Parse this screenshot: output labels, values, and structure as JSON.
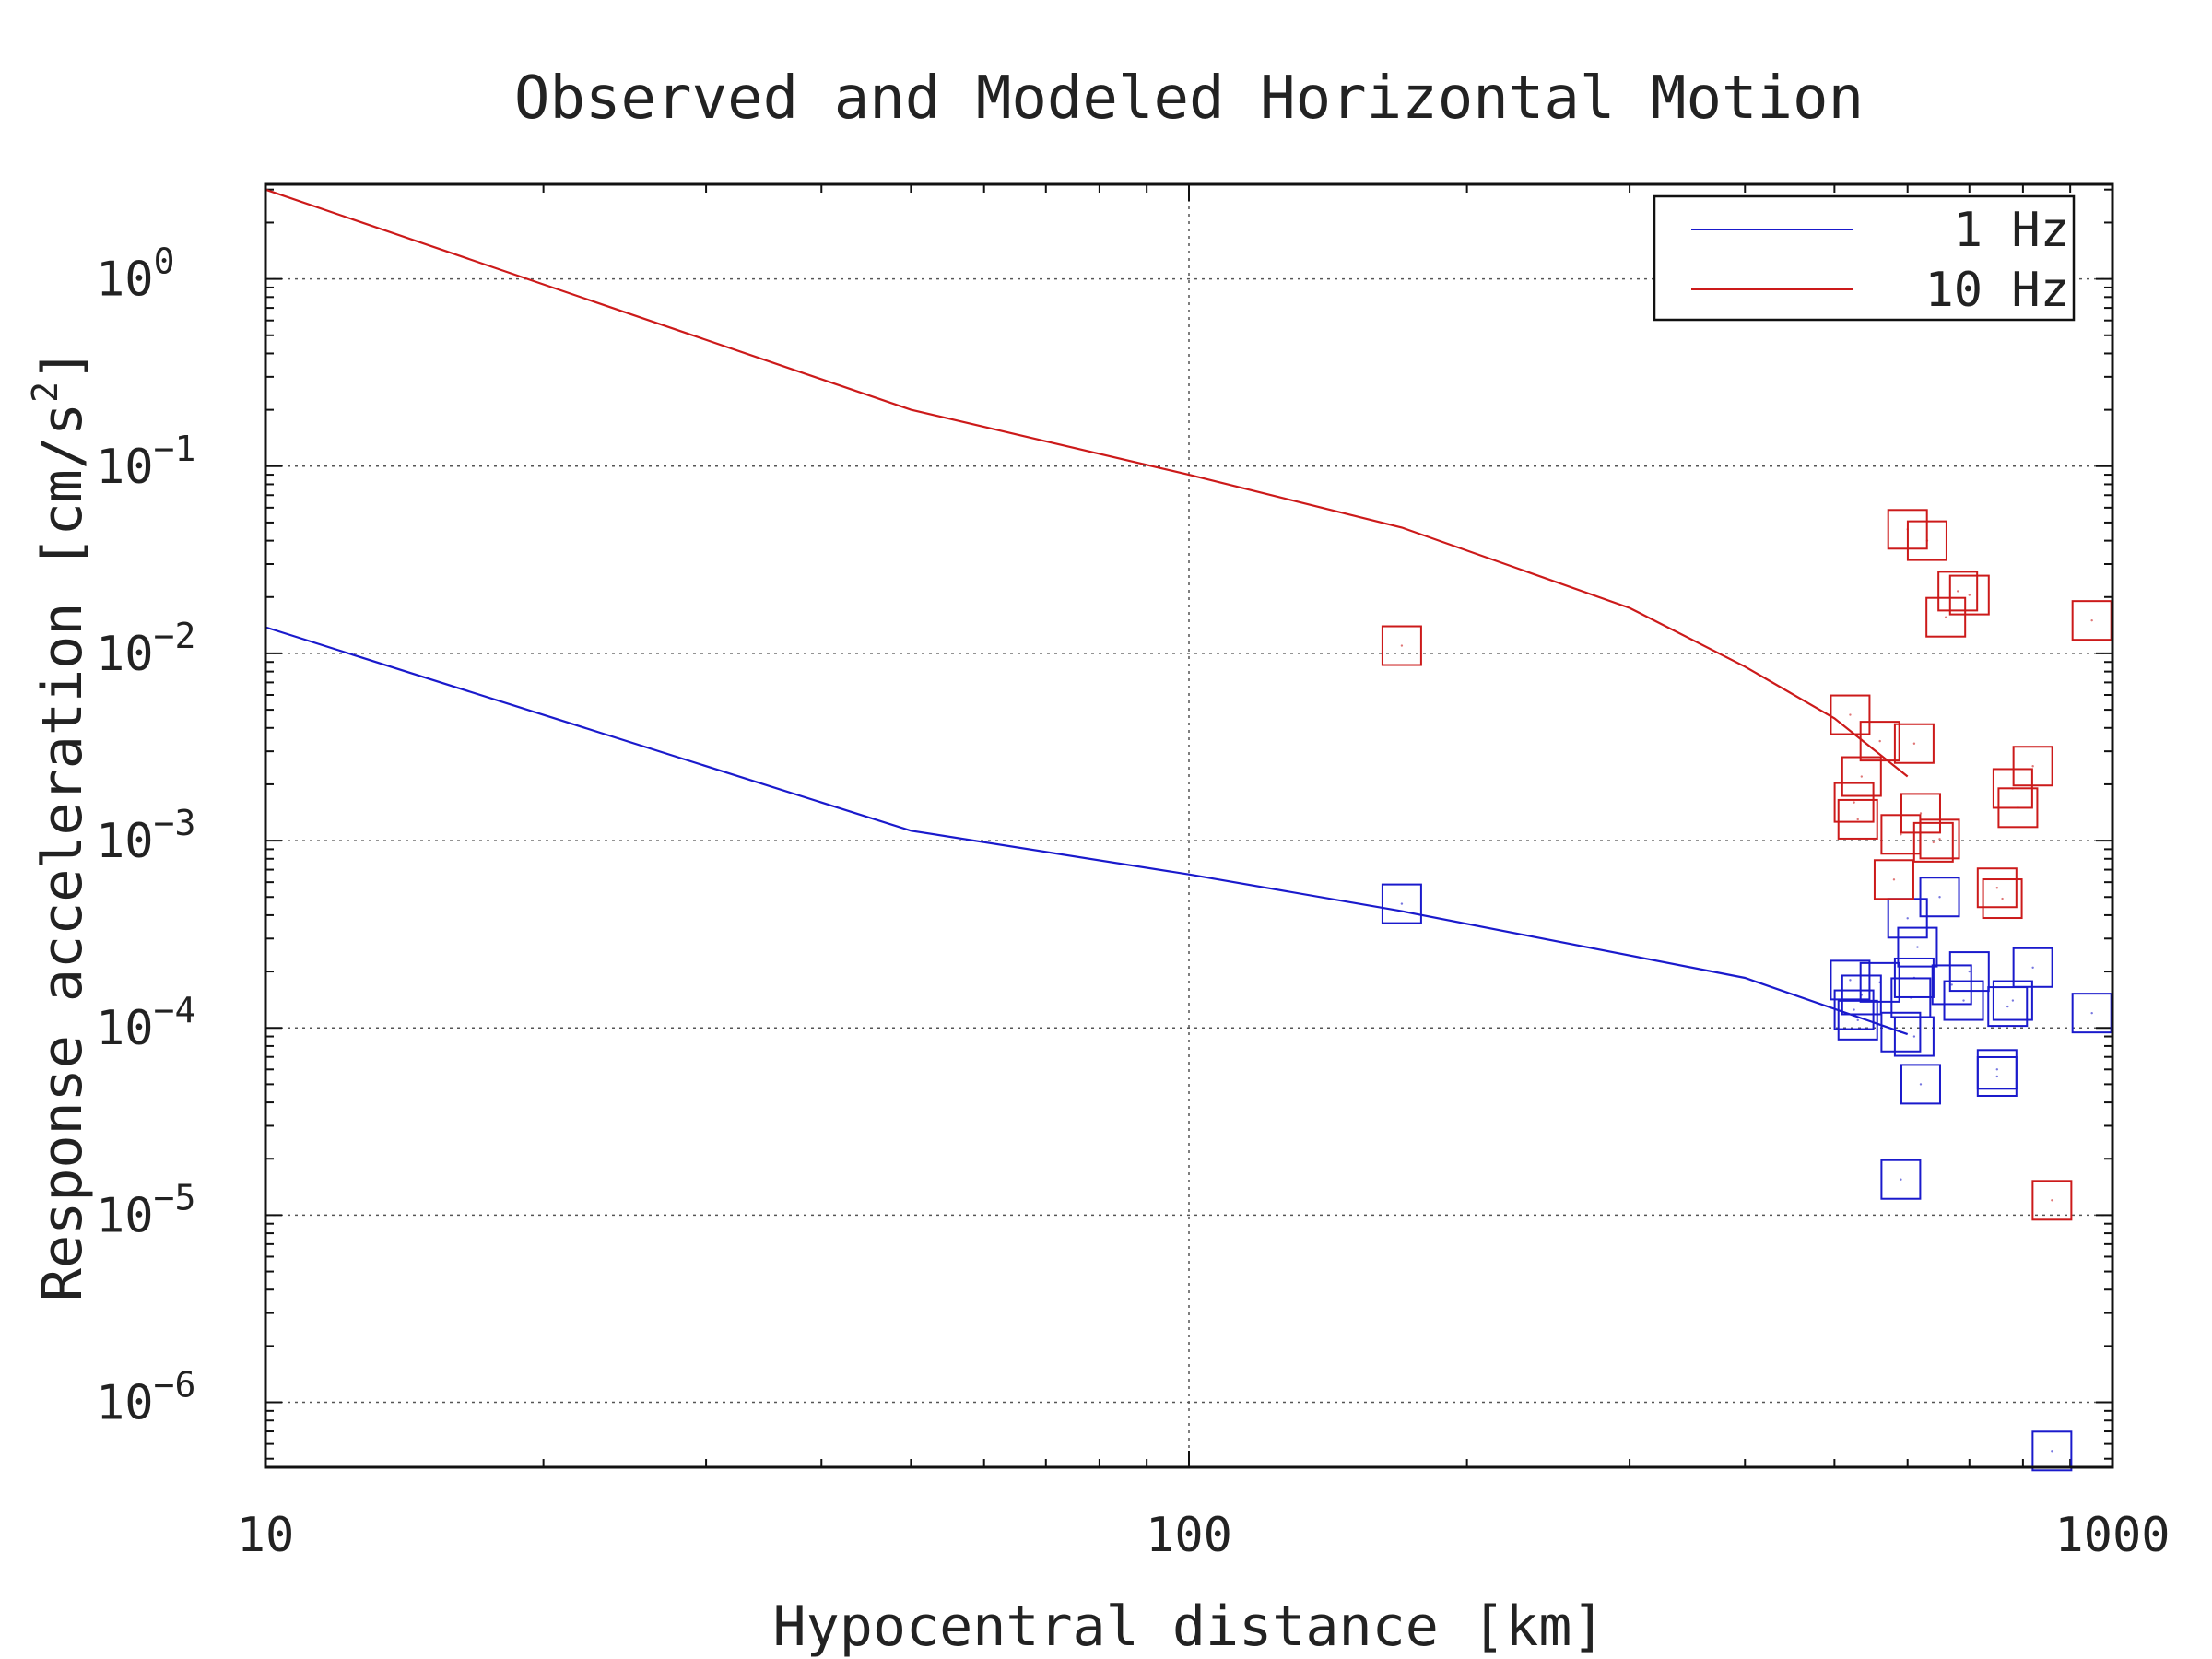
{
  "chart_data": {
    "type": "scatter",
    "title": "Observed and Modeled Horizontal Motion",
    "xlabel": "Hypocentral distance [km]",
    "ylabel": "Response acceleration [cm/s²]",
    "ylabel_main": "Response acceleration [cm/s",
    "ylabel_sup": "2",
    "ylabel_end": "]",
    "xscale": "log",
    "yscale": "log",
    "xlim": [
      10,
      1000
    ],
    "ylim": [
      4.5e-07,
      3.2
    ],
    "xticks": [
      {
        "value": 10,
        "label": "10"
      },
      {
        "value": 100,
        "label": "100"
      },
      {
        "value": 1000,
        "label": "1000"
      }
    ],
    "yticks": [
      {
        "value": 1,
        "base": "10",
        "exp": "0"
      },
      {
        "value": 0.1,
        "base": "10",
        "exp": "−1"
      },
      {
        "value": 0.01,
        "base": "10",
        "exp": "−2"
      },
      {
        "value": 0.001,
        "base": "10",
        "exp": "−3"
      },
      {
        "value": 0.0001,
        "base": "10",
        "exp": "−4"
      },
      {
        "value": 1e-05,
        "base": "10",
        "exp": "−5"
      },
      {
        "value": 1e-06,
        "base": "10",
        "exp": "−6"
      }
    ],
    "grid": true,
    "legend_position": "top-right",
    "series": [
      {
        "name": "1 Hz",
        "color": "#1a1acc",
        "model_line": [
          [
            10,
            0.0138
          ],
          [
            50,
            0.00113
          ],
          [
            100,
            0.00066
          ],
          [
            170,
            0.00042
          ],
          [
            400,
            0.000185
          ],
          [
            600,
            9.25e-05
          ]
        ],
        "observed": [
          [
            170,
            0.00046
          ],
          [
            590,
            1.55e-05
          ],
          [
            590,
            9.5e-05
          ],
          [
            600,
            0.000385
          ],
          [
            605,
            0.000145
          ],
          [
            610,
            9e-05
          ],
          [
            610,
            0.000185
          ],
          [
            615,
            0.00027
          ],
          [
            620,
            5e-05
          ],
          [
            520,
            0.00018
          ],
          [
            525,
            0.000125
          ],
          [
            530,
            0.00011
          ],
          [
            535,
            0.00015
          ],
          [
            560,
            0.000175
          ],
          [
            650,
            0.0005
          ],
          [
            670,
            0.00017
          ],
          [
            690,
            0.00014
          ],
          [
            700,
            0.0002
          ],
          [
            750,
            6e-05
          ],
          [
            750,
            5.5e-05
          ],
          [
            770,
            0.00013
          ],
          [
            780,
            0.00014
          ],
          [
            820,
            0.00021
          ],
          [
            860,
            5.5e-07
          ],
          [
            950,
            0.00012
          ]
        ]
      },
      {
        "name": "10 Hz",
        "color": "#cc1a1a",
        "model_line": [
          [
            10,
            3.0
          ],
          [
            50,
            0.2
          ],
          [
            100,
            0.09
          ],
          [
            170,
            0.047
          ],
          [
            300,
            0.0175
          ],
          [
            400,
            0.0085
          ],
          [
            500,
            0.0045
          ],
          [
            600,
            0.0022
          ]
        ],
        "observed": [
          [
            170,
            0.011
          ],
          [
            520,
            0.0047
          ],
          [
            525,
            0.0016
          ],
          [
            530,
            0.0013
          ],
          [
            535,
            0.0022
          ],
          [
            560,
            0.0034
          ],
          [
            580,
            0.00062
          ],
          [
            590,
            0.00108
          ],
          [
            600,
            0.046
          ],
          [
            610,
            0.0033
          ],
          [
            620,
            0.0014
          ],
          [
            630,
            0.04
          ],
          [
            640,
            0.00098
          ],
          [
            650,
            0.00102
          ],
          [
            660,
            0.0156
          ],
          [
            680,
            0.0215
          ],
          [
            700,
            0.0205
          ],
          [
            750,
            0.00056
          ],
          [
            760,
            0.00049
          ],
          [
            780,
            0.0019
          ],
          [
            790,
            0.0015
          ],
          [
            820,
            0.0025
          ],
          [
            860,
            1.2e-05
          ],
          [
            950,
            0.015
          ]
        ]
      }
    ]
  }
}
